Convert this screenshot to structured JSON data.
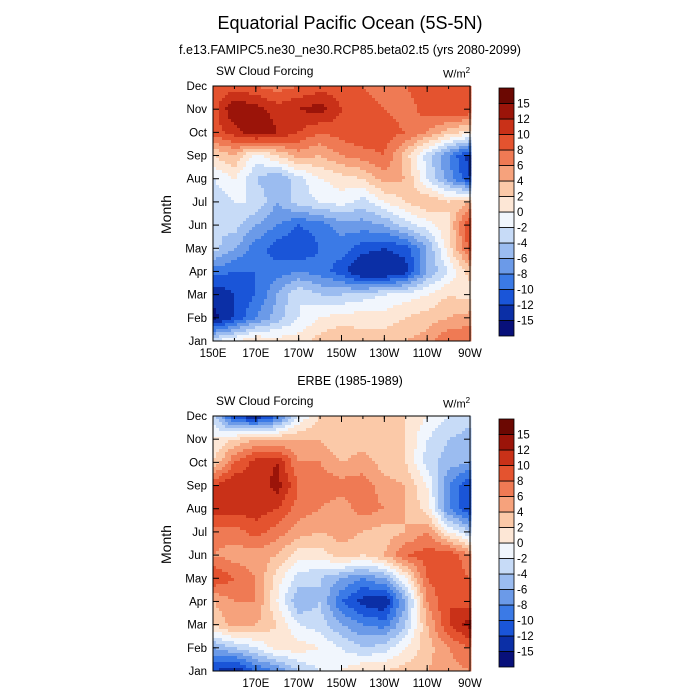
{
  "title": "Equatorial Pacific Ocean (5S-5N)",
  "panels": [
    {
      "subtitle": "f.e13.FAMIPC5.ne30_ne30.RCP85.beta02.t5 (yrs 2080-2099)",
      "left_label": "SW Cloud Forcing",
      "units_base": "W/m",
      "units_exp": "2",
      "ylabel": "Month"
    },
    {
      "subtitle": "ERBE (1985-1989)",
      "left_label": "SW Cloud Forcing",
      "units_base": "W/m",
      "units_exp": "2",
      "ylabel": "Month"
    }
  ],
  "colors": {
    "scale": [
      "#08107a",
      "#0b2fa6",
      "#1a55d8",
      "#3b7ae6",
      "#6b9ae8",
      "#9bbcf0",
      "#c7dbf7",
      "#f1f6fd",
      "#fde7d6",
      "#fbc9a8",
      "#f6a27c",
      "#ef7a54",
      "#e4532f",
      "#c93118",
      "#9b1409",
      "#6b0802"
    ]
  },
  "chart_data": [
    {
      "type": "heatmap",
      "title": "f.e13.FAMIPC5.ne30_ne30.RCP85.beta02.t5 (yrs 2080-2099)",
      "variable": "SW Cloud Forcing",
      "units": "W/m2",
      "ylabel": "Month",
      "x_ticks": [
        "150E",
        "170E",
        "170W",
        "150W",
        "130W",
        "110W",
        "90W"
      ],
      "x_tick_values": [
        150,
        170,
        190,
        210,
        230,
        250,
        270
      ],
      "xlim": [
        150,
        270
      ],
      "y_ticks": [
        "Jan",
        "Feb",
        "Mar",
        "Apr",
        "May",
        "Jun",
        "Jul",
        "Aug",
        "Sep",
        "Oct",
        "Nov",
        "Dec"
      ],
      "colorbar_levels": [
        -15,
        -12,
        -10,
        -8,
        -6,
        -4,
        -2,
        0,
        2,
        4,
        6,
        8,
        10,
        12,
        15
      ],
      "x": [
        150,
        160,
        170,
        180,
        190,
        200,
        210,
        220,
        230,
        240,
        250,
        260,
        270
      ],
      "values": [
        [
          -2,
          0,
          2,
          1,
          1,
          3,
          4,
          3,
          3,
          4,
          5,
          8,
          8
        ],
        [
          -16,
          -12,
          -8,
          -5,
          -2,
          0,
          1,
          1,
          1,
          2,
          3,
          4,
          5
        ],
        [
          -14,
          -12,
          -10,
          -6,
          -2,
          -4,
          -4,
          -3,
          -2,
          -1,
          0,
          2,
          1
        ],
        [
          -9,
          -10,
          -10,
          -9,
          -8,
          -9,
          -11,
          -15,
          -15,
          -13,
          -6,
          -2,
          3
        ],
        [
          -3,
          -6,
          -9,
          -11,
          -12,
          -10,
          -9,
          -11,
          -12,
          -11,
          -6,
          1,
          9
        ],
        [
          -4,
          -3,
          -6,
          -8,
          -10,
          -9,
          -7,
          -7,
          -6,
          -3,
          -1,
          2,
          10
        ],
        [
          -4,
          -2,
          -2,
          -6,
          -3,
          -2,
          -1,
          -3,
          0,
          2,
          4,
          2,
          4
        ],
        [
          -2,
          0,
          -4,
          -6,
          -3,
          0,
          1,
          2,
          5,
          4,
          -2,
          -7,
          -12
        ],
        [
          2,
          4,
          -1,
          2,
          5,
          4,
          6,
          7,
          8,
          3,
          -3,
          -8,
          -13
        ],
        [
          9,
          11,
          14,
          12,
          10,
          8,
          9,
          10,
          9,
          8,
          6,
          3,
          1
        ],
        [
          9,
          14,
          13,
          11,
          12,
          13,
          10,
          9,
          8,
          7,
          9,
          10,
          10
        ],
        [
          8,
          9,
          8,
          7,
          8,
          9,
          9,
          8,
          7,
          8,
          9,
          10,
          9
        ]
      ]
    },
    {
      "type": "heatmap",
      "title": "ERBE (1985-1989)",
      "variable": "SW Cloud Forcing",
      "units": "W/m2",
      "ylabel": "Month",
      "x_ticks": [
        "170E",
        "170W",
        "150W",
        "130W",
        "110W",
        "90W"
      ],
      "x_tick_values": [
        170,
        190,
        210,
        230,
        250,
        270
      ],
      "xlim": [
        150,
        270
      ],
      "y_ticks": [
        "Jan",
        "Feb",
        "Mar",
        "Apr",
        "May",
        "Jun",
        "Jul",
        "Aug",
        "Sep",
        "Oct",
        "Nov",
        "Dec"
      ],
      "colorbar_levels": [
        -15,
        -12,
        -10,
        -8,
        -6,
        -4,
        -2,
        0,
        2,
        4,
        6,
        8,
        10,
        12,
        15
      ],
      "x": [
        150,
        160,
        170,
        180,
        190,
        200,
        210,
        220,
        230,
        240,
        250,
        260,
        270
      ],
      "values": [
        [
          -12,
          -14,
          -10,
          -8,
          -4,
          -2,
          0,
          2,
          2,
          3,
          4,
          5,
          6
        ],
        [
          -6,
          -4,
          -2,
          1,
          1,
          0,
          -2,
          -4,
          -3,
          0,
          3,
          6,
          8
        ],
        [
          2,
          5,
          4,
          2,
          -2,
          -3,
          -6,
          -8,
          -9,
          -4,
          4,
          10,
          13
        ],
        [
          4,
          6,
          6,
          0,
          -6,
          -4,
          -10,
          -13,
          -14,
          -6,
          6,
          10,
          9
        ],
        [
          10,
          8,
          6,
          1,
          -3,
          -4,
          -6,
          -8,
          -6,
          0,
          8,
          10,
          8
        ],
        [
          6,
          5,
          5,
          4,
          1,
          1,
          3,
          2,
          4,
          8,
          9,
          10,
          6
        ],
        [
          7,
          7,
          9,
          7,
          5,
          4,
          5,
          4,
          3,
          4,
          6,
          0,
          -4
        ],
        [
          11,
          11,
          11,
          10,
          7,
          6,
          5,
          7,
          6,
          4,
          1,
          -8,
          -12
        ],
        [
          10,
          12,
          10,
          13,
          8,
          7,
          7,
          7,
          5,
          4,
          0,
          -8,
          -12
        ],
        [
          2,
          8,
          11,
          12,
          6,
          6,
          4,
          5,
          3,
          2,
          -3,
          -5,
          -6
        ],
        [
          0,
          2,
          4,
          4,
          4,
          4,
          2,
          3,
          2,
          2,
          -2,
          -4,
          -5
        ],
        [
          -3,
          -12,
          -14,
          -10,
          -2,
          2,
          2,
          4,
          3,
          2,
          0,
          -2,
          -3
        ]
      ]
    }
  ]
}
